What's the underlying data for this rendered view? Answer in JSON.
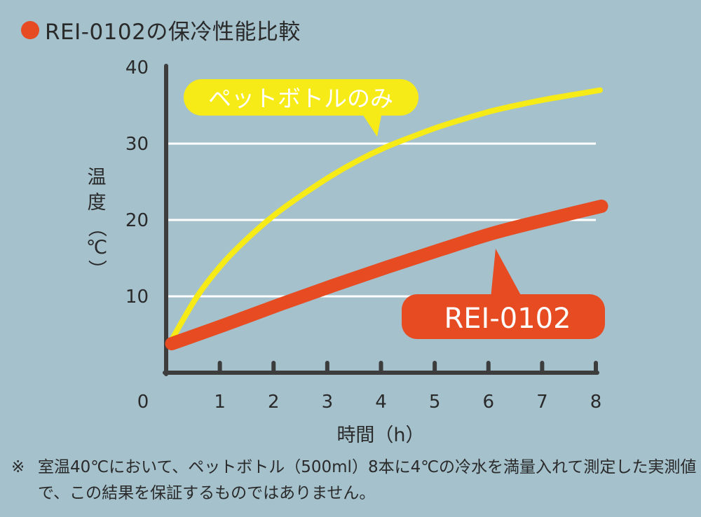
{
  "title": "REI-0102の保冷性能比較",
  "colors": {
    "background": "#a4c1cc",
    "axis": "#3d3d3d",
    "gridline": "#ffffff",
    "yellow_series": "#f6eb16",
    "red_series": "#e64b22",
    "text": "#2a2a2a"
  },
  "chart_data": {
    "type": "line",
    "xlabel": "時間（h）",
    "ylabel_chars": [
      "温",
      "度",
      "（",
      "℃",
      "）"
    ],
    "x_ticks": [
      "0",
      "1",
      "2",
      "3",
      "4",
      "5",
      "6",
      "7",
      "8"
    ],
    "y_ticks": [
      "10",
      "20",
      "30",
      "40"
    ],
    "xlim": [
      0,
      8
    ],
    "ylim": [
      0,
      40
    ],
    "grid": true,
    "series": [
      {
        "name": "ペットボトルのみ",
        "color": "#f6eb16",
        "x": [
          0,
          0.5,
          1,
          1.5,
          2,
          2.5,
          3,
          3.5,
          4,
          4.5,
          5,
          5.5,
          6,
          6.5,
          7,
          7.5,
          8
        ],
        "y": [
          4,
          10,
          14.5,
          18,
          21,
          23.5,
          25.8,
          27.8,
          29.5,
          30.9,
          32.2,
          33.3,
          34.3,
          35.1,
          35.8,
          36.4,
          37
        ]
      },
      {
        "name": "REI-0102",
        "color": "#e64b22",
        "x": [
          0,
          1,
          2,
          3,
          4,
          5,
          6,
          7,
          8
        ],
        "y": [
          3.8,
          6.3,
          8.9,
          11.4,
          13.8,
          16.1,
          18.3,
          20.1,
          21.8
        ]
      }
    ]
  },
  "note": {
    "mark": "※",
    "text": "室温40℃において、ペットボトル（500ml）8本に4℃の冷水を満量入れて測定した実測値で、この結果を保証するものではありません。"
  }
}
